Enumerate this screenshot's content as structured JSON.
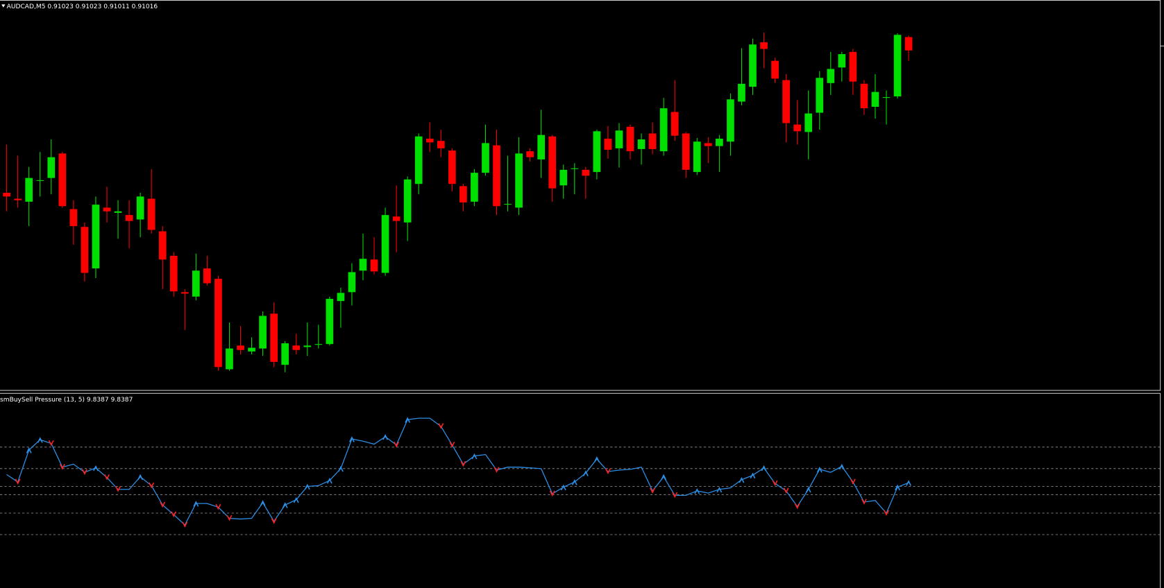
{
  "chart_data": [
    {
      "type": "candlestick",
      "title": "AUDCAD,M5  0.91023 0.91023 0.91011 0.91016",
      "up_color": "#00e000",
      "down_color": "#ff0000",
      "ylim": [
        0,
        530
      ],
      "open": [
        270,
        262,
        258,
        287,
        290,
        323,
        248,
        224,
        168,
        250,
        243,
        240,
        234,
        262,
        218,
        185,
        136,
        130,
        168,
        154,
        32,
        64,
        56,
        60,
        107,
        38,
        64,
        62,
        66,
        66,
        124,
        136,
        165,
        180,
        162,
        238,
        230,
        282,
        343,
        340,
        327,
        279,
        258,
        297,
        334,
        255,
        250,
        326,
        315,
        346,
        280,
        303,
        301,
        298,
        343,
        330,
        359,
        329,
        350,
        326,
        379,
        350,
        298,
        337,
        333,
        339,
        393,
        413,
        473,
        448,
        422,
        362,
        352,
        378,
        418,
        439,
        460,
        417,
        386,
        399,
        400,
        480
      ],
      "high": [
        335,
        320,
        305,
        325,
        342,
        325,
        260,
        230,
        265,
        278,
        260,
        260,
        270,
        302,
        225,
        190,
        140,
        188,
        185,
        158,
        95,
        90,
        75,
        110,
        122,
        70,
        80,
        95,
        92,
        130,
        142,
        175,
        215,
        210,
        250,
        280,
        292,
        350,
        365,
        355,
        330,
        282,
        302,
        362,
        355,
        320,
        345,
        330,
        382,
        348,
        308,
        310,
        305,
        355,
        360,
        364,
        362,
        350,
        365,
        398,
        422,
        352,
        344,
        345,
        348,
        404,
        465,
        478,
        486,
        452,
        430,
        395,
        408,
        434,
        460,
        460,
        464,
        422,
        430,
        408,
        485,
        482
      ],
      "low": [
        245,
        250,
        225,
        265,
        268,
        250,
        200,
        150,
        155,
        230,
        208,
        195,
        210,
        215,
        140,
        130,
        85,
        125,
        145,
        30,
        30,
        52,
        52,
        50,
        35,
        28,
        52,
        50,
        60,
        64,
        88,
        118,
        152,
        160,
        158,
        190,
        205,
        268,
        325,
        318,
        272,
        245,
        252,
        293,
        240,
        245,
        240,
        312,
        290,
        258,
        262,
        268,
        262,
        288,
        316,
        304,
        315,
        308,
        322,
        320,
        340,
        290,
        294,
        310,
        298,
        320,
        388,
        402,
        438,
        418,
        338,
        335,
        315,
        355,
        402,
        420,
        402,
        375,
        370,
        362,
        397,
        448
      ],
      "close": [
        265,
        260,
        290,
        287,
        318,
        252,
        225,
        162,
        254,
        245,
        245,
        232,
        265,
        220,
        180,
        137,
        134,
        165,
        148,
        35,
        60,
        58,
        61,
        104,
        42,
        67,
        58,
        64,
        66,
        127,
        135,
        163,
        181,
        164,
        240,
        232,
        288,
        346,
        338,
        330,
        282,
        257,
        297,
        337,
        252,
        255,
        323,
        318,
        348,
        276,
        301,
        303,
        293,
        353,
        328,
        354,
        326,
        342,
        329,
        384,
        347,
        301,
        339,
        333,
        343,
        396,
        417,
        470,
        464,
        424,
        364,
        353,
        377,
        425,
        437,
        457,
        420,
        384,
        406,
        399,
        483,
        462
      ]
    },
    {
      "type": "line",
      "title": "smBuySell Pressure (13, 5) 9.8387 9.8387",
      "ylim": [
        0,
        263
      ],
      "color": "#2b8fe6",
      "up_marker_color": "#2b8fe6",
      "down_marker_color": "#ff2020",
      "levels": [
        190,
        161,
        137,
        126,
        101,
        72
      ],
      "level_color": "#9a9a9a",
      "values": [
        153,
        143,
        186,
        200,
        195,
        163,
        167,
        156,
        162,
        149,
        133,
        133,
        150,
        138,
        112,
        99,
        85,
        114,
        114,
        109,
        94,
        93,
        94,
        115,
        90,
        112,
        119,
        137,
        138,
        145,
        161,
        201,
        198,
        194,
        204,
        193,
        227,
        229,
        229,
        218,
        193,
        167,
        178,
        180,
        159,
        163,
        163,
        162,
        161,
        127,
        136,
        143,
        155,
        174,
        157,
        159,
        160,
        163,
        131,
        150,
        125,
        125,
        131,
        128,
        133,
        135,
        146,
        152,
        162,
        141,
        131,
        110,
        133,
        160,
        156,
        164,
        143,
        116,
        118,
        101,
        136,
        142
      ]
    }
  ]
}
